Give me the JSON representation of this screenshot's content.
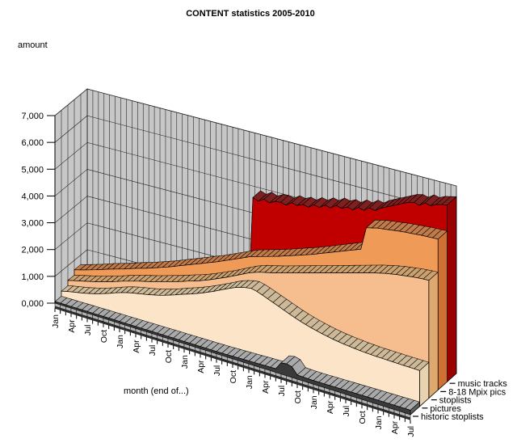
{
  "chart": {
    "title": "CONTENT statistics 2005-2010",
    "y_axis_title": "amount",
    "x_axis_title": "month (end of...)",
    "y_tick_labels": [
      "0,000",
      "1,000",
      "2,000",
      "3,000",
      "4,000",
      "5,000",
      "6,000",
      "7,000"
    ]
  },
  "legend": {
    "items": [
      "music tracks",
      "8-18 Mpix pics",
      "stoplists",
      "pictures",
      "historic stoplists"
    ]
  },
  "colors": {
    "wall": "#c7c7c7",
    "floor": "#c0c0c0",
    "plinth": "#b2b2b2",
    "axis_band": "#303030",
    "grid": "#1a1a1a",
    "text": "#000000"
  },
  "chart_data": {
    "type": "area",
    "projection": "3d-depth-rows",
    "title": "CONTENT statistics 2005-2010",
    "xlabel": "month (end of...)",
    "ylabel": "amount",
    "ylim": [
      0,
      7000
    ],
    "x_start": "Jan 2005",
    "x_end": "Jul 2010",
    "n_months": 67,
    "x_tick_labels": [
      "Jan",
      "Apr",
      "Jul",
      "Oct",
      "Jan",
      "Apr",
      "Jul",
      "Oct",
      "Jan",
      "Apr",
      "Jul",
      "Oct",
      "Jan",
      "Apr",
      "Jul",
      "Oct",
      "Jan",
      "Apr",
      "Jul",
      "Oct",
      "Jan",
      "Apr",
      "Jul"
    ],
    "series": [
      {
        "name": "music tracks",
        "depth": 4,
        "color": "#c00000",
        "ribbon_color": "#7e2020",
        "cap_color": "#9b0000",
        "values": [
          0,
          450,
          520,
          540,
          500,
          480,
          60,
          50,
          55,
          60,
          55,
          50,
          55,
          60,
          58,
          62,
          60,
          65,
          63,
          60,
          65,
          68,
          64,
          60,
          65,
          62,
          60,
          58,
          62,
          60,
          58,
          4900,
          4820,
          4950,
          4870,
          4980,
          5000,
          4950,
          5100,
          5050,
          5150,
          5100,
          5250,
          5200,
          5350,
          5300,
          5450,
          5400,
          5500,
          5450,
          5600,
          5550,
          5700,
          5650,
          5800,
          5900,
          6000,
          6100,
          6200,
          6300,
          6350,
          6300,
          6450,
          6400,
          6500,
          6550,
          6600
        ]
      },
      {
        "name": "8-18 Mpix pics",
        "depth": 3,
        "color": "#f09a58",
        "ribbon_color": "#c17b4b",
        "cap_color": "#ce7133",
        "values": [
          650,
          700,
          760,
          820,
          880,
          950,
          1020,
          1080,
          1140,
          1200,
          1270,
          1340,
          1400,
          1460,
          1530,
          1600,
          1670,
          1740,
          1820,
          1900,
          1980,
          2060,
          2140,
          2220,
          2300,
          2380,
          2460,
          2550,
          2640,
          2730,
          2820,
          2910,
          3000,
          3060,
          3120,
          3180,
          3240,
          3300,
          3370,
          3440,
          3510,
          3580,
          3650,
          3720,
          3800,
          3880,
          3960,
          4040,
          4120,
          4200,
          4280,
          4360,
          4440,
          5300,
          5350,
          5400,
          5430,
          5460,
          5490,
          5520,
          5540,
          5560,
          5580,
          5600,
          5610,
          5620,
          5630
        ]
      },
      {
        "name": "stoplists",
        "depth": 2,
        "color": "#f6be8e",
        "ribbon_color": "#cba06e",
        "cap_color": "#dda96f",
        "values": [
          450,
          500,
          550,
          600,
          650,
          700,
          760,
          820,
          880,
          950,
          1020,
          1080,
          1140,
          1200,
          1250,
          1300,
          1360,
          1420,
          1480,
          1540,
          1600,
          1670,
          1740,
          1800,
          1870,
          1950,
          2030,
          2120,
          2210,
          2300,
          2400,
          2500,
          2600,
          2700,
          2780,
          2850,
          2900,
          2950,
          3000,
          3060,
          3120,
          3180,
          3240,
          3300,
          3360,
          3420,
          3480,
          3540,
          3600,
          3660,
          3720,
          3780,
          3840,
          3900,
          3960,
          4020,
          4080,
          4130,
          4180,
          4220,
          4260,
          4290,
          4320,
          4350,
          4370,
          4390,
          4400
        ]
      },
      {
        "name": "pictures",
        "depth": 1,
        "color": "#fbe4c8",
        "ribbon_color": "#cdb897",
        "cap_color": "#e8d2b0",
        "values": [
          250,
          300,
          340,
          380,
          420,
          470,
          520,
          580,
          650,
          720,
          800,
          870,
          930,
          980,
          1020,
          1060,
          1100,
          1150,
          1200,
          1260,
          1330,
          1400,
          1480,
          1550,
          1620,
          1700,
          1780,
          1870,
          1960,
          2060,
          2160,
          2260,
          2350,
          2420,
          2470,
          2500,
          2450,
          2380,
          2300,
          2220,
          2140,
          2060,
          1980,
          1900,
          1830,
          1770,
          1710,
          1660,
          1610,
          1570,
          1530,
          1500,
          1470,
          1450,
          1430,
          1410,
          1395,
          1385,
          1375,
          1370,
          1365,
          1360,
          1355,
          1350,
          1350,
          1345,
          1340
        ]
      },
      {
        "name": "historic stoplists",
        "depth": 0,
        "color": "#3a3a3a",
        "ribbon_color": "#a9a9a9",
        "cap_color": "#606060",
        "values": [
          60,
          62,
          65,
          63,
          66,
          68,
          70,
          68,
          71,
          73,
          72,
          74,
          75,
          74,
          76,
          78,
          77,
          79,
          80,
          78,
          81,
          82,
          83,
          84,
          85,
          84,
          86,
          87,
          88,
          87,
          89,
          90,
          95,
          100,
          105,
          110,
          115,
          120,
          125,
          130,
          135,
          140,
          420,
          450,
          400,
          160,
          150,
          145,
          140,
          142,
          144,
          146,
          148,
          150,
          152,
          154,
          156,
          158,
          160,
          162,
          163,
          164,
          165,
          166,
          167,
          168,
          170
        ]
      }
    ],
    "legend_position": "bottom-right",
    "grid": true
  }
}
